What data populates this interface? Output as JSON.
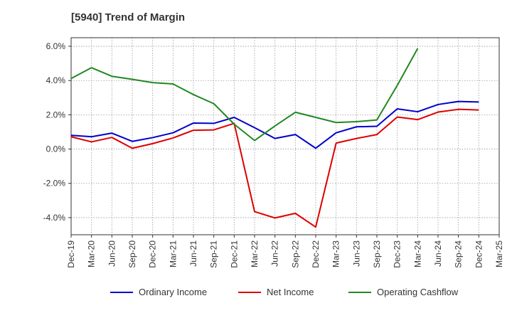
{
  "title": "[5940]  Trend of Margin",
  "chart_data": {
    "type": "line",
    "title": "[5940]  Trend of Margin",
    "xlabel": "",
    "ylabel": "",
    "ylim": [
      -5.0,
      6.5
    ],
    "yticks": [
      6.0,
      4.0,
      2.0,
      0.0,
      -2.0,
      -4.0
    ],
    "ytick_labels": [
      "6.0%",
      "4.0%",
      "2.0%",
      "0.0%",
      "-2.0%",
      "-4.0%"
    ],
    "categories": [
      "Dec-19",
      "Mar-20",
      "Jun-20",
      "Sep-20",
      "Dec-20",
      "Mar-21",
      "Jun-21",
      "Sep-21",
      "Dec-21",
      "Mar-22",
      "Jun-22",
      "Sep-22",
      "Dec-22",
      "Mar-23",
      "Jun-23",
      "Sep-23",
      "Dec-23",
      "Mar-24",
      "Jun-24",
      "Sep-24",
      "Dec-24",
      "Mar-25"
    ],
    "grid": true,
    "legend_position": "bottom",
    "series": [
      {
        "name": "Ordinary Income",
        "color": "#0000cc",
        "values": [
          0.8,
          0.72,
          0.93,
          0.45,
          0.67,
          0.95,
          1.52,
          1.5,
          1.85,
          1.25,
          0.62,
          0.85,
          0.05,
          0.95,
          1.3,
          1.33,
          2.35,
          2.18,
          2.6,
          2.78,
          2.75,
          null
        ]
      },
      {
        "name": "Net Income",
        "color": "#dd0000",
        "values": [
          0.72,
          0.42,
          0.68,
          0.05,
          0.32,
          0.65,
          1.1,
          1.12,
          1.5,
          -3.65,
          -4.02,
          -3.75,
          -4.55,
          0.35,
          0.62,
          0.85,
          1.87,
          1.72,
          2.16,
          2.32,
          2.28,
          null
        ]
      },
      {
        "name": "Operating Cashflow",
        "color": "#228822",
        "values": [
          4.12,
          4.75,
          4.25,
          4.07,
          3.88,
          3.8,
          3.18,
          2.65,
          1.45,
          0.5,
          1.35,
          2.15,
          1.85,
          1.55,
          1.6,
          1.7,
          3.72,
          5.87,
          null,
          null,
          null,
          null
        ]
      }
    ]
  }
}
